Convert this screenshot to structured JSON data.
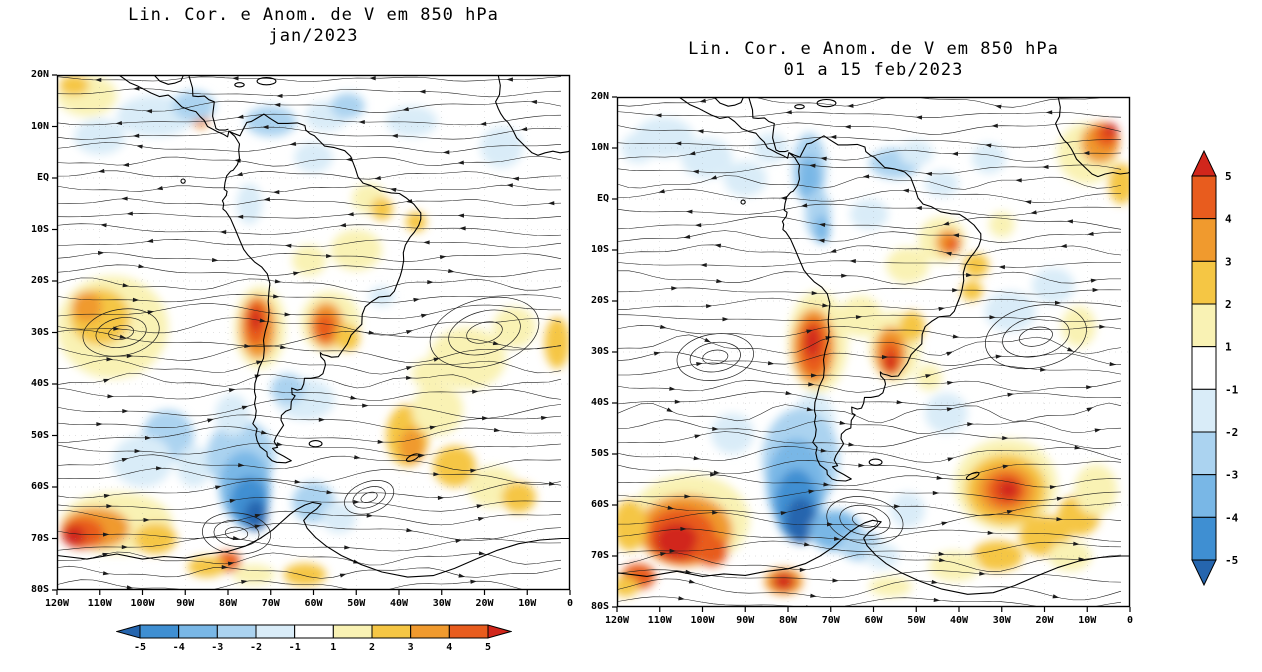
{
  "chart_data": {
    "type": "heatmap",
    "subtype": "streamlines-with-filled-anomaly-shading",
    "description": "Streamlines and meridional wind (V) anomalies at 850 hPa over South America and adjacent oceans; filled contours show anomaly magnitude, black streamlines show flow.",
    "levels": [
      -5,
      -4,
      -3,
      -2,
      -1,
      1,
      2,
      3,
      4,
      5
    ],
    "palette": [
      "#2565ae",
      "#3f8fd2",
      "#79b7e6",
      "#abd3f0",
      "#d9ecf8",
      "#ffffff",
      "#f9f2b4",
      "#f5c644",
      "#f09a2e",
      "#e85c1e",
      "#d1261b"
    ],
    "colorbar_horizontal_labels": [
      "-5",
      "-4",
      "-3",
      "-2",
      "-1",
      "1",
      "2",
      "3",
      "4",
      "5"
    ],
    "colorbar_vertical_labels": [
      "5",
      "4",
      "3",
      "2",
      "1",
      "-1",
      "-2",
      "-3",
      "-4",
      "-5"
    ],
    "anomaly_fields": [
      "lon",
      "lat",
      "rx_deg",
      "ry_deg",
      "level"
    ],
    "vortex_fields": [
      "lon",
      "lat",
      "r_deg",
      "rotation_deg"
    ],
    "panels": [
      {
        "title": "Lin. Cor. e Anom. de V em 850 hPa",
        "subtitle": "jan/2023",
        "lat_ticks": [
          "20N",
          "10N",
          "EQ",
          "10S",
          "20S",
          "30S",
          "40S",
          "50S",
          "60S",
          "70S",
          "80S"
        ],
        "lon_ticks": [
          "120W",
          "110W",
          "100W",
          "90W",
          "80W",
          "70W",
          "60W",
          "50W",
          "40W",
          "30W",
          "20W",
          "10W",
          "0"
        ],
        "anomalies": [
          [
            -113,
            16,
            7,
            4,
            2
          ],
          [
            -116,
            18,
            3.5,
            2,
            3
          ],
          [
            -86.5,
            11.5,
            2.2,
            1.8,
            4
          ],
          [
            -86.5,
            11.5,
            1.1,
            0.9,
            5
          ],
          [
            -47,
            -4,
            4,
            3,
            2
          ],
          [
            -44,
            -6,
            2.6,
            2.2,
            3
          ],
          [
            -36,
            -8.5,
            2.4,
            2,
            3
          ],
          [
            -50,
            -14,
            6,
            4,
            2
          ],
          [
            -61,
            -16,
            4,
            3,
            2
          ],
          [
            -107,
            -29,
            13,
            10,
            2
          ],
          [
            -110,
            -27,
            7,
            5.5,
            3
          ],
          [
            -113,
            -25,
            3.5,
            3,
            4
          ],
          [
            -72.5,
            -29,
            6,
            8,
            2
          ],
          [
            -73,
            -29,
            4.2,
            6.2,
            4
          ],
          [
            -73.4,
            -28.2,
            2.6,
            4.4,
            5
          ],
          [
            -73.5,
            -27.5,
            1.4,
            2.2,
            6
          ],
          [
            -56,
            -28,
            7,
            6,
            2
          ],
          [
            -57,
            -28.5,
            4,
            4.4,
            4
          ],
          [
            -57.3,
            -29,
            2.4,
            2.8,
            5
          ],
          [
            -52,
            -31,
            2.8,
            2.6,
            3
          ],
          [
            -24,
            -35,
            9,
            6,
            2
          ],
          [
            -13,
            -29,
            5,
            4,
            2
          ],
          [
            -3,
            -32,
            3,
            5,
            3
          ],
          [
            -38,
            -50,
            5,
            6,
            3
          ],
          [
            -37,
            -52,
            3,
            3.4,
            4
          ],
          [
            -31,
            -45,
            6,
            5,
            2
          ],
          [
            -27,
            -56,
            5,
            4,
            3
          ],
          [
            -18,
            -60,
            6,
            4,
            2
          ],
          [
            -12,
            -62,
            4,
            3,
            3
          ],
          [
            -33,
            -38,
            4,
            3,
            2
          ],
          [
            -106,
            -67,
            13,
            6,
            2
          ],
          [
            -111,
            -68,
            8,
            4,
            4
          ],
          [
            -114,
            -69,
            5,
            3,
            5
          ],
          [
            -116,
            -69.5,
            2.6,
            2,
            6
          ],
          [
            -97,
            -70,
            5,
            3,
            3
          ],
          [
            -80,
            -74.5,
            3,
            2,
            5
          ],
          [
            -85,
            -75.5,
            4.5,
            2,
            3
          ],
          [
            -74,
            -77,
            5,
            2,
            2
          ],
          [
            -62,
            -77,
            5,
            2.2,
            3
          ],
          [
            -97,
            12,
            9,
            4,
            -2
          ],
          [
            -88,
            14,
            5,
            3,
            -3
          ],
          [
            -70,
            11,
            6,
            3,
            -3
          ],
          [
            -57,
            12,
            5,
            3,
            -2
          ],
          [
            -52,
            14,
            4,
            2.5,
            -3
          ],
          [
            -60,
            4,
            4.5,
            3,
            -2
          ],
          [
            -37,
            11,
            6,
            3,
            -2
          ],
          [
            -16,
            6,
            5,
            4,
            -2
          ],
          [
            -110,
            8,
            6,
            3.5,
            -2
          ],
          [
            -75,
            -5,
            3,
            4,
            -2
          ],
          [
            -44,
            -23,
            3,
            2,
            -2
          ],
          [
            -62,
            -43,
            7,
            4,
            -2
          ],
          [
            -66,
            -41,
            4,
            3,
            -3
          ],
          [
            -94,
            -50,
            6,
            5,
            -3
          ],
          [
            -100,
            -55,
            7,
            5,
            -2
          ],
          [
            -88,
            -56,
            4,
            4,
            -2
          ],
          [
            -77,
            -54,
            8,
            7,
            -3
          ],
          [
            -76,
            -60,
            6,
            7,
            -4
          ],
          [
            -75,
            -63,
            4.5,
            5,
            -5
          ],
          [
            -73.5,
            -65.5,
            2.6,
            3,
            -6
          ],
          [
            -60,
            -63,
            5,
            4,
            -3
          ],
          [
            -54,
            -66,
            4,
            3,
            -2
          ],
          [
            -79,
            -46,
            4,
            4,
            -2
          ]
        ],
        "vortices": [
          [
            -20,
            -30,
            13,
            -15
          ],
          [
            -105,
            -30,
            9,
            -10
          ],
          [
            -78,
            -69,
            8,
            5
          ],
          [
            -47,
            -62,
            6,
            -20
          ]
        ]
      },
      {
        "title": "Lin. Cor. e Anom. de V em 850 hPa",
        "subtitle": "01 a 15 feb/2023",
        "lat_ticks": [
          "20N",
          "10N",
          "EQ",
          "10S",
          "20S",
          "30S",
          "40S",
          "50S",
          "60S",
          "70S",
          "80S"
        ],
        "lon_ticks": [
          "120W",
          "110W",
          "100W",
          "90W",
          "80W",
          "70W",
          "60W",
          "50W",
          "40W",
          "30W",
          "20W",
          "10W",
          "0"
        ],
        "anomalies": [
          [
            -10,
            9,
            7,
            6,
            2
          ],
          [
            -7,
            11,
            4.5,
            4,
            4
          ],
          [
            -5.5,
            12.5,
            2.8,
            2.4,
            5
          ],
          [
            -4.5,
            13.5,
            1.5,
            1.3,
            6
          ],
          [
            -2,
            3,
            3,
            4,
            3
          ],
          [
            -44,
            -8,
            5.5,
            4.5,
            2
          ],
          [
            -42.5,
            -8.5,
            3,
            2.6,
            4
          ],
          [
            -41.5,
            -9,
            1.7,
            1.5,
            5
          ],
          [
            -36,
            -13,
            3,
            2.4,
            3
          ],
          [
            -37,
            -18,
            2.6,
            2,
            3
          ],
          [
            -52,
            -13,
            5,
            3.5,
            2
          ],
          [
            -30,
            -5,
            3,
            2.5,
            2
          ],
          [
            -73,
            -28,
            7,
            10,
            2
          ],
          [
            -74,
            -29,
            5,
            7.5,
            4
          ],
          [
            -74,
            -29,
            3.4,
            5.6,
            5
          ],
          [
            -74.3,
            -28,
            1.8,
            3.2,
            6
          ],
          [
            -55,
            -29,
            6,
            7,
            2
          ],
          [
            -56,
            -30,
            3.8,
            5,
            4
          ],
          [
            -56,
            -31,
            2.4,
            3.4,
            5
          ],
          [
            -56,
            -32,
            1.3,
            1.8,
            6
          ],
          [
            -51,
            -25,
            3,
            3,
            3
          ],
          [
            -63,
            -23,
            5,
            4,
            2
          ],
          [
            -47,
            -35,
            3,
            2.6,
            2
          ],
          [
            -12,
            -25,
            4,
            4,
            2
          ],
          [
            -103,
            -63,
            14,
            9,
            2
          ],
          [
            -104,
            -65,
            11,
            7,
            4
          ],
          [
            -105,
            -66,
            8,
            5.5,
            5
          ],
          [
            -106,
            -67,
            5,
            3.5,
            6
          ],
          [
            -98,
            -69,
            4,
            3,
            5
          ],
          [
            -117,
            -64,
            4,
            5,
            3
          ],
          [
            -29,
            -56,
            12,
            9,
            2
          ],
          [
            -29,
            -57,
            9.5,
            7,
            3
          ],
          [
            -29,
            -57,
            7,
            5,
            4
          ],
          [
            -29,
            -57,
            4.6,
            3.4,
            5
          ],
          [
            -28.5,
            -57,
            2.5,
            1.9,
            6
          ],
          [
            -20,
            -66,
            6,
            4,
            3
          ],
          [
            -12,
            -62,
            5,
            4,
            3
          ],
          [
            -8,
            -57,
            5,
            5,
            2
          ],
          [
            -31,
            -70,
            6,
            3,
            3
          ],
          [
            -41,
            -72,
            6,
            3,
            2
          ],
          [
            -14,
            -70,
            5,
            3,
            2
          ],
          [
            -81,
            -75,
            4.5,
            2.6,
            4
          ],
          [
            -81,
            -75,
            2.6,
            1.7,
            6
          ],
          [
            -56,
            -76,
            5,
            2,
            2
          ],
          [
            -115,
            -74,
            4,
            2.5,
            5
          ],
          [
            -118,
            -76,
            3,
            2,
            3
          ],
          [
            -109,
            12,
            7,
            4,
            -2
          ],
          [
            -115,
            10,
            4,
            3,
            -2
          ],
          [
            -99,
            8,
            6,
            4,
            -2
          ],
          [
            -90,
            4,
            5,
            3.5,
            -2
          ],
          [
            -84,
            10,
            4,
            3,
            -2
          ],
          [
            -75,
            6,
            4,
            7,
            -3
          ],
          [
            -75,
            4,
            2.6,
            4.5,
            -4
          ],
          [
            -73,
            -3,
            3,
            5,
            -3
          ],
          [
            -72,
            -6,
            1.8,
            2.8,
            -4
          ],
          [
            -55,
            7,
            6,
            3,
            -3
          ],
          [
            -50,
            9,
            4,
            2.5,
            -2
          ],
          [
            -61,
            -3,
            4.5,
            3,
            -2
          ],
          [
            -44,
            3,
            4,
            2.6,
            -2
          ],
          [
            -33,
            8,
            4,
            3,
            -2
          ],
          [
            -28,
            -22,
            6,
            4,
            -2
          ],
          [
            -18,
            -17,
            5,
            3.5,
            -2
          ],
          [
            -43,
            -42,
            5,
            4,
            -2
          ],
          [
            -74,
            -44,
            5,
            6,
            -2
          ],
          [
            -77,
            -51,
            9,
            10,
            -3
          ],
          [
            -78,
            -56,
            7,
            9,
            -4
          ],
          [
            -78,
            -60,
            5,
            7,
            -5
          ],
          [
            -77,
            -63,
            3.5,
            4.5,
            -6
          ],
          [
            -69,
            -65,
            6,
            4,
            -4
          ],
          [
            -63,
            -68,
            5,
            3,
            -3
          ],
          [
            -58,
            -70,
            4,
            2.5,
            -2
          ],
          [
            -93,
            -46,
            5,
            4,
            -2
          ],
          [
            -52,
            -61,
            4,
            3.5,
            -2
          ]
        ],
        "vortices": [
          [
            -22,
            -27,
            12,
            -12
          ],
          [
            -97,
            -31,
            9,
            -8
          ],
          [
            -62,
            -63,
            9,
            10
          ]
        ]
      }
    ]
  }
}
